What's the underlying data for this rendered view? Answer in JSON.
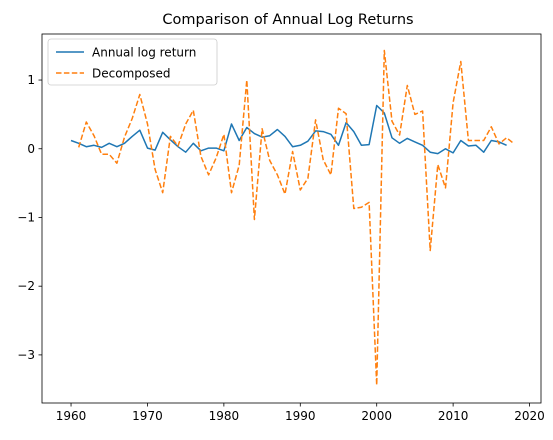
{
  "chart_data": {
    "type": "line",
    "title": "Comparison of Annual Log Returns",
    "xlabel": "",
    "ylabel": "",
    "xlim": [
      1956.2,
      2021.5
    ],
    "ylim": [
      -3.7,
      1.67
    ],
    "xticks": [
      1960,
      1970,
      1980,
      1990,
      2000,
      2010,
      2020
    ],
    "xtick_labels": [
      "1960",
      "1970",
      "1980",
      "1990",
      "2000",
      "2010",
      "2020"
    ],
    "yticks": [
      1,
      0,
      -1,
      -2,
      -3
    ],
    "ytick_labels": [
      "1",
      "0",
      "−1",
      "−2",
      "−3"
    ],
    "grid": false,
    "legend_position": "upper left",
    "series": [
      {
        "name": "Annual log return",
        "color": "#1f77b4",
        "style": "solid",
        "x": [
          1960,
          1961,
          1962,
          1963,
          1964,
          1965,
          1966,
          1967,
          1968,
          1969,
          1970,
          1971,
          1972,
          1973,
          1974,
          1975,
          1976,
          1977,
          1978,
          1979,
          1980,
          1981,
          1982,
          1983,
          1984,
          1985,
          1986,
          1987,
          1988,
          1989,
          1990,
          1991,
          1992,
          1993,
          1994,
          1995,
          1996,
          1997,
          1998,
          1999,
          2000,
          2001,
          2002,
          2003,
          2004,
          2005,
          2006,
          2007,
          2008,
          2009,
          2010,
          2011,
          2012,
          2013,
          2014,
          2015,
          2016,
          2017
        ],
        "y": [
          0.12,
          0.08,
          0.03,
          0.05,
          0.02,
          0.08,
          0.03,
          0.08,
          0.18,
          0.27,
          0.01,
          -0.02,
          0.24,
          0.13,
          0.03,
          -0.05,
          0.08,
          -0.03,
          0.01,
          0.01,
          -0.03,
          0.36,
          0.12,
          0.31,
          0.22,
          0.17,
          0.19,
          0.28,
          0.18,
          0.03,
          0.05,
          0.11,
          0.26,
          0.25,
          0.21,
          0.05,
          0.38,
          0.25,
          0.05,
          0.06,
          0.63,
          0.52,
          0.16,
          0.08,
          0.15,
          0.1,
          0.05,
          -0.05,
          -0.07,
          0.0,
          -0.06,
          0.12,
          0.04,
          0.05,
          -0.05,
          0.12,
          0.1,
          0.05
        ]
      },
      {
        "name": "Decomposed",
        "color": "#ff7f0e",
        "style": "dashed",
        "x": [
          1961,
          1962,
          1963,
          1964,
          1965,
          1966,
          1967,
          1968,
          1969,
          1970,
          1971,
          1972,
          1973,
          1974,
          1975,
          1976,
          1977,
          1978,
          1979,
          1980,
          1981,
          1982,
          1983,
          1984,
          1985,
          1986,
          1987,
          1988,
          1989,
          1990,
          1991,
          1992,
          1993,
          1994,
          1995,
          1996,
          1997,
          1998,
          1999,
          2000,
          2001,
          2002,
          2003,
          2004,
          2005,
          2006,
          2007,
          2008,
          2009,
          2010,
          2011,
          2012,
          2013,
          2014,
          2015,
          2016,
          2017,
          2018
        ],
        "y": [
          0.02,
          0.39,
          0.19,
          -0.08,
          -0.08,
          -0.21,
          0.17,
          0.44,
          0.79,
          0.36,
          -0.3,
          -0.64,
          0.18,
          0.04,
          0.36,
          0.56,
          -0.11,
          -0.38,
          -0.13,
          0.21,
          -0.64,
          -0.24,
          1.0,
          -1.03,
          0.29,
          -0.17,
          -0.38,
          -0.66,
          -0.04,
          -0.6,
          -0.43,
          0.42,
          -0.16,
          -0.38,
          0.59,
          0.51,
          -0.87,
          -0.85,
          -0.78,
          -3.44,
          1.43,
          0.4,
          0.2,
          0.92,
          0.5,
          0.55,
          -1.48,
          -0.23,
          -0.57,
          0.67,
          1.27,
          0.12,
          0.12,
          0.12,
          0.32,
          0.07,
          0.16,
          0.07
        ]
      }
    ]
  }
}
